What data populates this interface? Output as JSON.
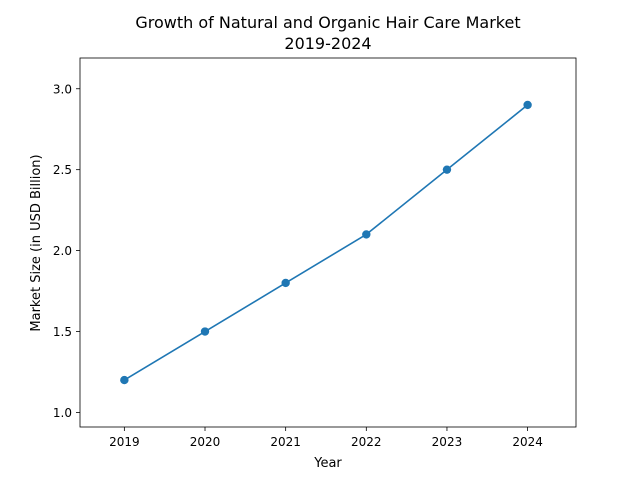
{
  "chart_data": {
    "type": "line",
    "title_line1": "Growth of Natural and Organic Hair Care Market",
    "title_line2": "2019-2024",
    "xlabel": "Year",
    "ylabel": "Market Size (in USD Billion)",
    "categories": [
      "2019",
      "2020",
      "2021",
      "2022",
      "2023",
      "2024"
    ],
    "series": [
      {
        "values": [
          1.2,
          1.5,
          1.8,
          2.1,
          2.5,
          2.9
        ],
        "color": "#1f77b4",
        "marker": "circle"
      }
    ],
    "ylim": [
      0.91,
      3.19
    ],
    "xlim": [
      -0.55,
      5.6
    ],
    "yticks": [
      "1.0",
      "1.5",
      "2.0",
      "2.5",
      "3.0"
    ],
    "ytick_values": [
      1.0,
      1.5,
      2.0,
      2.5,
      3.0
    ],
    "grid": false,
    "legend": "none"
  }
}
